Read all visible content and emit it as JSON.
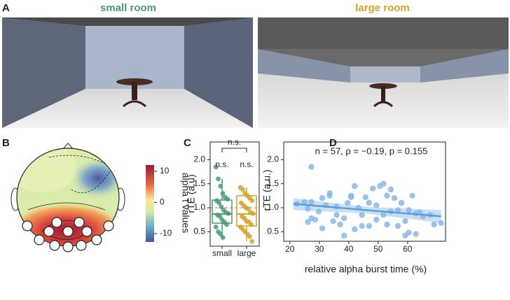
{
  "panels": [
    "A",
    "B",
    "C",
    "D"
  ],
  "room_titles": [
    "small room",
    "large room"
  ],
  "chart_data": [
    {
      "type": "topomap",
      "colorbar_label": "alpha t values",
      "clim": [
        -12.7,
        12
      ],
      "cticks": [
        10,
        0,
        -10
      ]
    },
    {
      "type": "box",
      "ylabel": "rTE (a.u)",
      "categories": [
        "small",
        "large"
      ],
      "colors": [
        "#4a9a74",
        "#d4a129"
      ],
      "points": [
        [
          1.85,
          1.6,
          1.45,
          1.3,
          1.22,
          1.18,
          1.15,
          1.1,
          1.02,
          0.95,
          0.9,
          0.88,
          0.85,
          0.82,
          0.75,
          0.7,
          0.65,
          0.6,
          0.5,
          0.45,
          0.38
        ],
        [
          1.42,
          1.38,
          1.3,
          1.25,
          1.2,
          1.15,
          1.1,
          1.05,
          1.0,
          0.98,
          0.9,
          0.88,
          0.82,
          0.78,
          0.72,
          0.7,
          0.65,
          0.6,
          0.55,
          0.5,
          0.45,
          0.4,
          0.3
        ]
      ],
      "boxes": [
        {
          "whislo": 0.38,
          "q1": 0.68,
          "median": 0.87,
          "q3": 1.16,
          "whishi": 1.6
        },
        {
          "whislo": 0.3,
          "q1": 0.62,
          "median": 0.87,
          "q3": 1.25,
          "whishi": 1.42
        }
      ],
      "hline": 1,
      "annotations": [
        "n.s.",
        "n.s.",
        "n.s."
      ],
      "ylim": [
        0.2,
        2.37
      ],
      "yticks": [
        {
          "value": 0.5,
          "label": "0.5"
        },
        {
          "value": 1,
          "label": "1.0"
        },
        {
          "value": 1.5,
          "label": "1.5"
        },
        {
          "value": 2,
          "label": "2.0"
        }
      ]
    },
    {
      "type": "scatter",
      "annotation": "n = 57, ρ = −0.19, p = 0.155",
      "xlabel": "relative alpha burst time (%)",
      "ylabel": "rTE (a.u.)",
      "color": "#8ab8e6",
      "x": [
        22.4,
        24.9,
        26.1,
        26.1,
        27.3,
        27.3,
        27.3,
        28.6,
        29.8,
        31.0,
        31.0,
        32.2,
        33.5,
        33.5,
        34.7,
        35.9,
        35.9,
        37.1,
        38.4,
        38.4,
        39.6,
        40.8,
        40.8,
        42.0,
        42.0,
        43.3,
        44.5,
        44.5,
        45.7,
        46.9,
        46.9,
        48.2,
        49.4,
        49.4,
        50.6,
        51.8,
        51.8,
        53.0,
        53.0,
        54.3,
        54.3,
        55.5,
        56.7,
        56.7,
        57.9,
        59.2,
        59.2,
        60.4,
        60.4,
        61.6,
        62.8,
        62.8,
        64.1,
        65.3,
        67.7,
        69.0,
        71.4
      ],
      "y": [
        1.08,
        1.12,
        0.98,
        0.7,
        1.85,
        1.12,
        0.78,
        0.75,
        0.92,
        1.2,
        0.57,
        1.05,
        1.3,
        1.25,
        0.72,
        1.02,
        0.85,
        0.65,
        0.42,
        0.78,
        1.1,
        1.25,
        1.22,
        1.45,
        0.55,
        1.0,
        0.62,
        0.85,
        1.22,
        1.1,
        0.62,
        1.4,
        1.05,
        0.75,
        1.45,
        1.5,
        0.85,
        0.65,
        1.25,
        1.38,
        0.92,
        1.2,
        0.95,
        0.62,
        1.1,
        0.72,
        0.42,
        0.95,
        0.48,
        1.25,
        0.88,
        0.45,
        0.9,
        0.82,
        0.85,
        0.65,
        0.68
      ],
      "fit": {
        "x": [
          21.2,
          45.7,
          71.4
        ],
        "y": [
          1.08,
          0.95,
          0.82
        ],
        "lower": [
          0.95,
          0.88,
          0.68
        ],
        "upper": [
          1.2,
          1.02,
          0.95
        ]
      },
      "xlim": [
        17.9,
        72.9
      ],
      "ylim": [
        0.3,
        2.37
      ],
      "xticks": [
        20,
        30,
        40,
        50,
        60
      ],
      "yticks": [
        {
          "value": 0.5,
          "label": "0.5"
        },
        {
          "value": 1,
          "label": "1.0"
        },
        {
          "value": 1.5,
          "label": "1.5"
        },
        {
          "value": 2,
          "label": "2.0"
        }
      ]
    }
  ]
}
